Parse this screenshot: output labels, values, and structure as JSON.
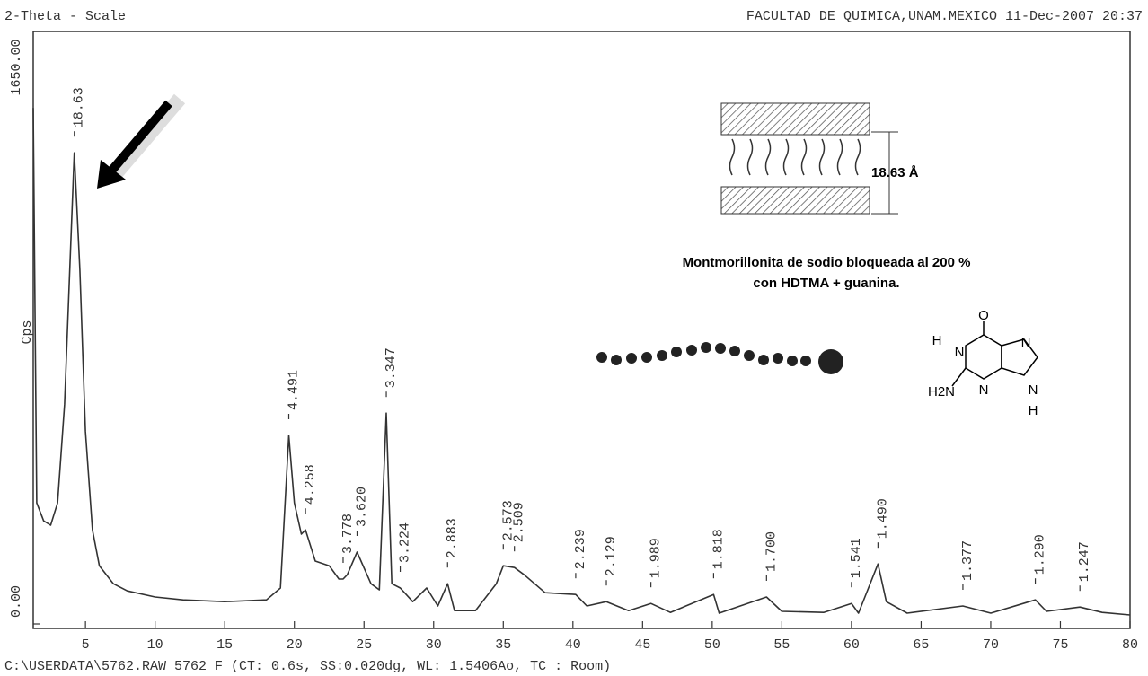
{
  "header": {
    "left": "2-Theta - Scale",
    "right": "FACULTAD DE QUIMICA,UNAM.MEXICO 11-Dec-2007 20:37"
  },
  "footer": "C:\\USERDATA\\5762.RAW 5762 F (CT:  0.6s, SS:0.020dg, WL: 1.5406Ao, TC : Room)",
  "chart_data": {
    "type": "line",
    "ylabel": "Cps",
    "color": "#333333",
    "xlim": [
      1.25,
      80
    ],
    "xticks": [
      5,
      10,
      15,
      20,
      25,
      30,
      35,
      40,
      45,
      50,
      55,
      60,
      65,
      70,
      75,
      80
    ],
    "ylim": [
      0,
      1650
    ],
    "yticks": [
      {
        "value": 0,
        "label": "0.00"
      },
      {
        "value": 1650,
        "label": "1650.00"
      }
    ],
    "x": [
      1.25,
      1.5,
      2,
      2.5,
      3,
      3.5,
      4,
      4.2,
      4.6,
      5,
      5.5,
      6,
      7,
      8,
      10,
      12,
      15,
      18,
      19,
      19.6,
      20,
      20.5,
      20.8,
      21.5,
      22.5,
      23.2,
      23.5,
      23.8,
      24.5,
      25.5,
      26.1,
      26.6,
      27,
      27.6,
      28.5,
      29.5,
      30.3,
      31,
      31.5,
      33,
      34.5,
      35,
      35.8,
      36.5,
      38,
      40.2,
      41,
      42.4,
      44,
      45.6,
      47,
      50.1,
      50.5,
      53.9,
      55,
      58,
      60,
      60.5,
      61.9,
      62.5,
      64,
      68,
      70,
      73.2,
      74,
      76.4,
      78,
      80
    ],
    "values": [
      1437,
      337,
      287,
      275,
      337,
      612,
      1112,
      1312,
      987,
      537,
      262,
      162,
      112,
      92,
      75,
      67,
      62,
      67,
      100,
      525,
      337,
      250,
      262,
      175,
      162,
      125,
      125,
      137,
      200,
      112,
      95,
      587,
      112,
      100,
      62,
      100,
      50,
      112,
      37,
      37,
      112,
      162,
      157,
      137,
      87,
      82,
      50,
      62,
      37,
      57,
      32,
      82,
      30,
      75,
      35,
      32,
      57,
      30,
      167,
      62,
      30,
      50,
      30,
      67,
      35,
      47,
      32,
      25
    ],
    "peaks": [
      {
        "x": 4.2,
        "label": "18.63"
      },
      {
        "x": 19.6,
        "label": "4.491"
      },
      {
        "x": 20.8,
        "label": "4.258"
      },
      {
        "x": 23.5,
        "label": "3.778"
      },
      {
        "x": 24.5,
        "label": "3.620"
      },
      {
        "x": 26.6,
        "label": "3.347"
      },
      {
        "x": 27.6,
        "label": "3.224"
      },
      {
        "x": 31,
        "label": "2.883"
      },
      {
        "x": 35,
        "label": "2.573"
      },
      {
        "x": 35.8,
        "label": "2.509"
      },
      {
        "x": 40.2,
        "label": "2.239"
      },
      {
        "x": 42.4,
        "label": "2.129"
      },
      {
        "x": 45.6,
        "label": "1.989"
      },
      {
        "x": 50.1,
        "label": "1.818"
      },
      {
        "x": 53.9,
        "label": "1.700"
      },
      {
        "x": 60,
        "label": "1.541"
      },
      {
        "x": 61.9,
        "label": "1.490"
      },
      {
        "x": 68,
        "label": "1.377"
      },
      {
        "x": 73.2,
        "label": "1.290"
      },
      {
        "x": 76.4,
        "label": "1.247"
      }
    ]
  },
  "inset": {
    "spacing": "18.63 Å",
    "caption": [
      "Montmorillonita de sodio bloqueada al 200 %",
      "con HDTMA + guanina."
    ],
    "molecule": {
      "o": "O",
      "n1": "N",
      "n3": "N",
      "n7": "N",
      "n9": "N",
      "h1": "H",
      "h9": "H",
      "nh2": "H2N"
    }
  }
}
